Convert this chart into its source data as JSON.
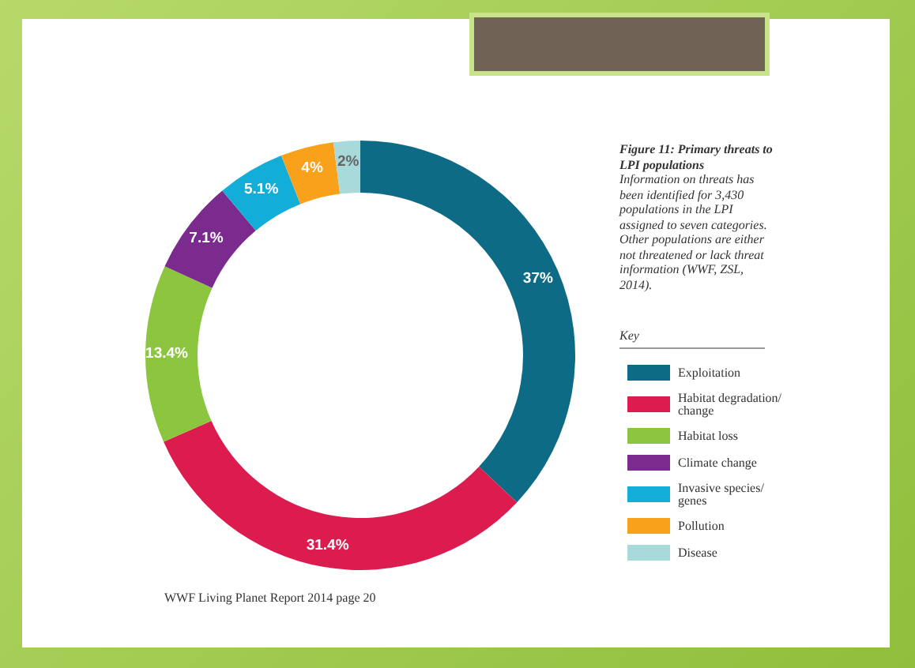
{
  "chart_data": {
    "type": "donut",
    "title": "Figure 11: Primary threats to LPI populations",
    "subtitle": "Information on threats has been identified for 3,430 populations in the LPI assigned to seven categories. Other populations are either not threatened or lack threat information (WWF, ZSL, 2014).",
    "legend_title": "Key",
    "categories": [
      "Exploitation",
      "Habitat degradation/ change",
      "Habitat loss",
      "Climate change",
      "Invasive species/ genes",
      "Pollution",
      "Disease"
    ],
    "values": [
      37,
      31.4,
      13.4,
      7.1,
      5.1,
      4,
      2
    ],
    "value_labels": [
      "37%",
      "31.4%",
      "13.4%",
      "7.1%",
      "5.1%",
      "4%",
      "2%"
    ],
    "colors": [
      "#0d6b85",
      "#dc1c4f",
      "#8cc63f",
      "#7b2a8e",
      "#12aed8",
      "#f9a11b",
      "#a8dadc"
    ],
    "legend": "right",
    "annotations": [
      "WWF Living Planet Report 2014 page 20"
    ]
  }
}
